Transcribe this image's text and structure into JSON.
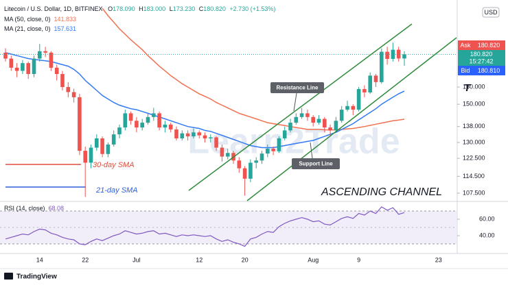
{
  "chart_data": {
    "type": "candlestick",
    "legend": {
      "symbol": "Litecoin / U.S. Dollar, 1D, BITFINEX",
      "ohlc": [
        [
          "O",
          "178.090"
        ],
        [
          "H",
          "183.000"
        ],
        [
          "L",
          "173.230"
        ],
        [
          "C",
          "180.820"
        ]
      ],
      "change": "+2.730 (+1.53%)"
    },
    "categories": [
      null,
      null,
      null,
      null,
      null,
      null,
      "14",
      null,
      null,
      null,
      null,
      null,
      null,
      null,
      "22",
      null,
      null,
      null,
      null,
      null,
      null,
      null,
      null,
      "Jul",
      null,
      null,
      null,
      null,
      null,
      null,
      null,
      null,
      null,
      null,
      "12",
      null,
      null,
      null,
      null,
      null,
      null,
      null,
      "20",
      null,
      null,
      null,
      null,
      null,
      null,
      null,
      null,
      null,
      null,
      null,
      "Aug",
      null,
      null,
      null,
      null,
      null,
      null,
      null,
      "9",
      null,
      null,
      null,
      null,
      null,
      null,
      null,
      null,
      null,
      null,
      null,
      null,
      null,
      "23"
    ],
    "up_color": "#26a69a",
    "down_color": "#ef5350",
    "open": [
      182,
      178,
      172,
      170,
      175,
      168,
      178,
      183,
      182,
      172,
      168,
      160,
      157,
      154,
      126,
      120.5,
      127.5,
      132,
      124.5,
      129,
      134,
      137.5,
      145,
      141,
      137.5,
      140,
      143,
      145,
      137.5,
      139,
      136.5,
      132,
      134.5,
      133,
      135,
      133.5,
      132,
      132.5,
      127.5,
      123.3,
      125,
      121.5,
      118,
      113.5,
      120.5,
      121.5,
      124.7,
      127,
      125.8,
      132,
      136,
      140,
      143,
      145,
      143,
      140,
      142,
      137.5,
      136,
      141,
      147,
      149,
      147,
      158.8,
      156.8,
      167,
      163,
      182.6,
      177.8,
      184,
      178.09,
      null,
      null,
      null,
      null,
      null,
      null
    ],
    "high": [
      185,
      180,
      175,
      177,
      176,
      180,
      188,
      186,
      183,
      174,
      170,
      163,
      159,
      156,
      128,
      129,
      134,
      133,
      130,
      136,
      139,
      147,
      146,
      143,
      142,
      145,
      148,
      146,
      141,
      140,
      138,
      136,
      136,
      137,
      136,
      135,
      134,
      133,
      129,
      127,
      126,
      123,
      119,
      122,
      123,
      126,
      129,
      128,
      133,
      138,
      142,
      145,
      148,
      147,
      144,
      144,
      143,
      139,
      143,
      149,
      152,
      150,
      160,
      161,
      169,
      168,
      185,
      186,
      189,
      186,
      183,
      null,
      null,
      null,
      null,
      null,
      null
    ],
    "low": [
      176,
      170,
      166,
      168,
      165,
      166,
      176,
      179,
      170,
      164,
      158,
      154,
      151,
      124,
      106,
      118,
      126,
      123,
      123,
      128,
      132,
      136,
      139,
      135,
      136,
      139,
      141,
      136,
      135,
      135,
      131,
      131,
      131,
      132,
      132,
      130,
      130,
      126,
      121,
      122,
      120,
      116,
      106.5,
      112,
      118,
      120,
      123,
      124,
      125,
      131,
      135,
      139,
      142,
      141,
      138,
      139,
      135,
      133,
      135,
      140,
      146,
      144,
      146,
      154,
      156,
      160,
      162,
      174,
      176,
      176,
      173.23,
      null,
      null,
      null,
      null,
      null,
      null
    ],
    "close": [
      178,
      172,
      170,
      175,
      168,
      178,
      183,
      182,
      172,
      168,
      160,
      157,
      154,
      126,
      120.5,
      127.5,
      132,
      124.5,
      129,
      134,
      137.5,
      145,
      141,
      137.5,
      140,
      143,
      145,
      137.5,
      139,
      136.5,
      132,
      134.5,
      133,
      135,
      133.5,
      132,
      132.5,
      127.5,
      123.3,
      125,
      121.5,
      118,
      113.5,
      120.5,
      121.5,
      124.7,
      127,
      125.8,
      132,
      136,
      140,
      143,
      145,
      143,
      140,
      142,
      137.5,
      136,
      141,
      147,
      149,
      147,
      158.8,
      156.8,
      167,
      163,
      182.6,
      177.8,
      184,
      178.09,
      180.82,
      null,
      null,
      null,
      null,
      null,
      null
    ],
    "series": [
      {
        "name": "MA (50, close, 0)",
        "value_label": "141.833",
        "color": "#f2704f",
        "values": [
          null,
          null,
          null,
          null,
          null,
          null,
          null,
          null,
          null,
          null,
          null,
          null,
          null,
          null,
          null,
          null,
          null,
          215,
          209,
          204,
          199,
          195,
          191,
          187.5,
          184,
          180,
          176.5,
          173,
          170,
          167,
          164.5,
          162,
          160,
          158,
          156,
          154.5,
          153,
          151,
          149.5,
          148,
          146.5,
          145,
          144,
          143,
          142,
          141,
          140,
          139.5,
          139,
          138.5,
          138,
          137.5,
          137,
          136.5,
          136.5,
          136.5,
          136.3,
          136.2,
          136.3,
          136.5,
          136.8,
          137,
          137.5,
          138,
          138.6,
          139.2,
          139.8,
          140.4,
          141,
          141.4,
          141.833,
          null,
          null,
          null,
          null,
          null,
          null
        ]
      },
      {
        "name": "MA (21, close, 0)",
        "value_label": "157.631",
        "color": "#3179f5",
        "values": [
          182,
          181,
          180,
          179,
          178,
          177.5,
          177,
          176.5,
          176,
          175,
          174,
          173,
          171,
          168,
          164,
          161,
          158,
          155,
          153,
          151,
          149.5,
          148.5,
          147.5,
          147,
          146,
          145,
          144,
          143,
          142,
          141,
          140,
          139,
          138,
          137.5,
          137,
          136,
          135.5,
          134.5,
          133.5,
          132.5,
          131.5,
          130.5,
          129.5,
          128.5,
          128,
          127.5,
          127.5,
          127.5,
          128,
          128.5,
          129,
          129.5,
          130,
          130.5,
          131,
          132,
          133,
          134,
          135,
          136.5,
          138,
          139.5,
          141.5,
          143.5,
          145.5,
          147.5,
          150,
          152,
          154,
          156,
          157.631,
          null,
          null,
          null,
          null,
          null,
          null
        ]
      }
    ],
    "ylim": [
      104.5,
      221.7
    ],
    "log_scale": true,
    "currency": "USD",
    "yticks": [
      {
        "value": 107.5,
        "label": "107.500"
      },
      {
        "value": 114.5,
        "label": "114.500"
      },
      {
        "value": 122.5,
        "label": "122.500"
      },
      {
        "value": 130,
        "label": "130.000"
      },
      {
        "value": 138,
        "label": "138.000"
      },
      {
        "value": 150,
        "label": "150.000"
      },
      {
        "value": 160,
        "label": "160.000"
      }
    ],
    "price_labels": {
      "ask": [
        "Ask",
        "180.820"
      ],
      "last": [
        "180.820",
        "15:27:42"
      ],
      "bid": [
        "Bid",
        "180.810"
      ]
    },
    "annotations": {
      "resistance": "Resistance Line",
      "support": "Support Line",
      "channel": "ASCENDING CHANNEL",
      "sma30": "30-day SMA",
      "sma21": "21-day SMA",
      "watermark": "Learn2Trade",
      "cut": "T"
    },
    "rsi": {
      "name": "RSI (14, close)",
      "value_label": "68.08",
      "color": "#7e57c2",
      "ylim": [
        20,
        78.3
      ],
      "yticks": [
        {
          "value": 60,
          "label": "60.00"
        },
        {
          "value": 40,
          "label": "40.00"
        }
      ],
      "values": [
        36,
        38,
        40,
        42,
        41,
        45,
        48,
        47,
        43,
        41,
        38,
        36,
        35,
        30,
        29,
        33,
        36,
        34,
        37,
        40,
        42,
        46,
        44,
        42,
        43,
        45,
        46,
        42,
        43,
        41,
        39,
        41,
        40,
        41,
        40,
        39,
        40,
        36,
        33,
        35,
        32,
        30,
        27,
        36,
        38,
        42,
        45,
        44,
        51,
        55,
        58,
        60,
        62,
        60,
        57,
        58,
        54,
        53,
        57,
        61,
        63,
        61,
        67,
        65,
        70,
        67,
        75,
        71,
        74,
        66,
        68.08,
        null,
        null,
        null,
        null,
        null,
        null
      ]
    },
    "footer": "TradingView"
  }
}
